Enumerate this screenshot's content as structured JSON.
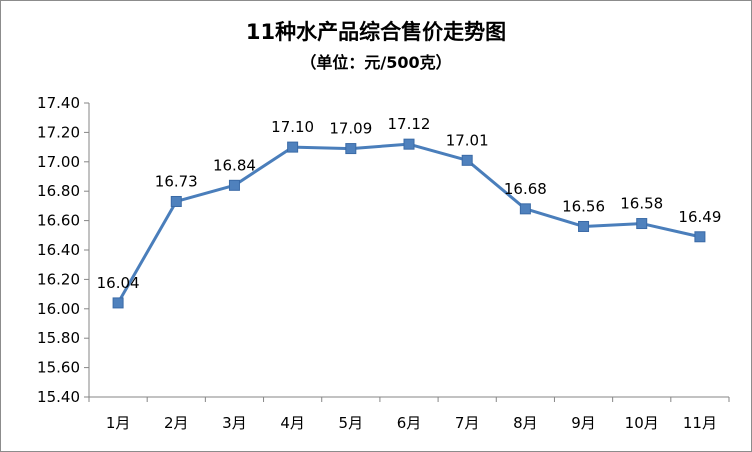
{
  "chart_data": {
    "type": "line",
    "title": "11种水产品综合售价走势图",
    "subtitle": "（单位：元/500克）",
    "xlabel": "",
    "ylabel": "",
    "categories": [
      "1月",
      "2月",
      "3月",
      "4月",
      "5月",
      "6月",
      "7月",
      "8月",
      "9月",
      "10月",
      "11月"
    ],
    "series": [
      {
        "values": [
          16.04,
          16.73,
          16.84,
          17.1,
          17.09,
          17.12,
          17.01,
          16.68,
          16.56,
          16.58,
          16.49
        ],
        "labels": [
          "16.04",
          "16.73",
          "16.84",
          "17.10",
          "17.09",
          "17.12",
          "17.01",
          "16.68",
          "16.56",
          "16.58",
          "16.49"
        ]
      }
    ],
    "ylim": [
      15.4,
      17.4
    ],
    "y_step": 0.2,
    "y_tick_labels": [
      "15.40",
      "15.60",
      "15.80",
      "16.00",
      "16.20",
      "16.40",
      "16.60",
      "16.80",
      "17.00",
      "17.20",
      "17.40"
    ],
    "grid": false,
    "legend": "none",
    "line_color": "#4a7ebb",
    "marker_color": "#4f81bd",
    "marker": "square"
  }
}
